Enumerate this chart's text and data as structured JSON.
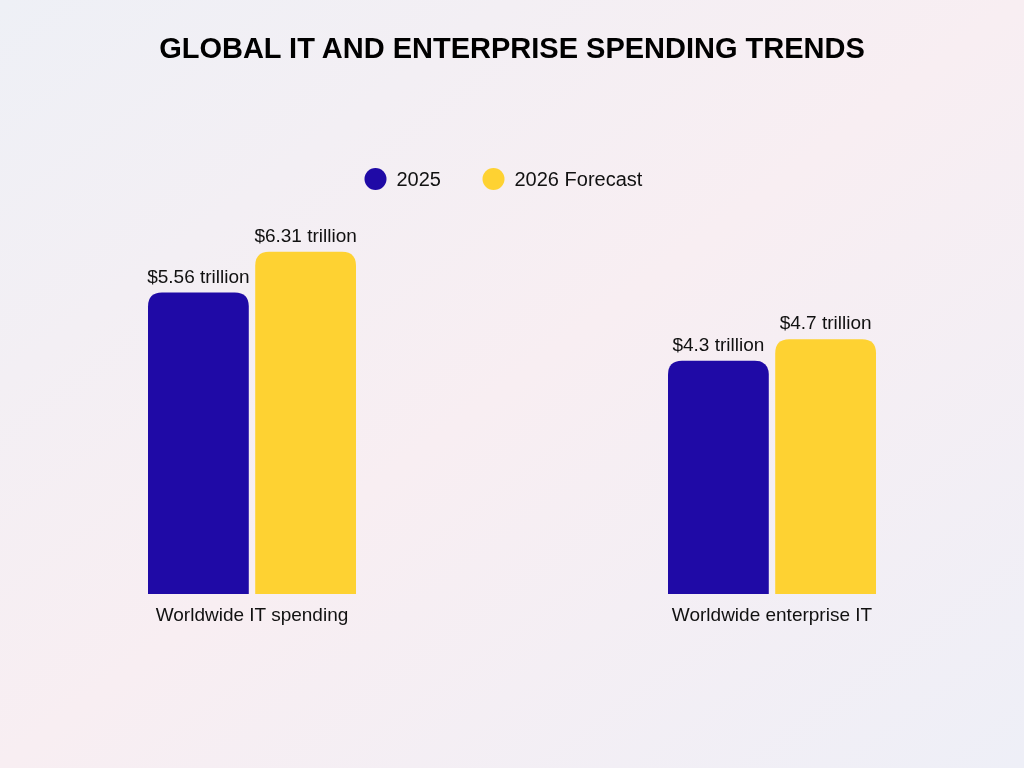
{
  "chart_data": {
    "type": "bar",
    "title": "GLOBAL IT AND ENTERPRISE SPENDING TRENDS",
    "categories": [
      "Worldwide IT spending",
      "Worldwide enterprise IT"
    ],
    "legend": "top",
    "series": [
      {
        "name": "2025",
        "color": "#1f0aa6",
        "values": [
          5.56,
          4.3
        ],
        "value_labels": [
          "$5.56 trillion",
          "$4.3 trillion"
        ]
      },
      {
        "name": "2026 Forecast",
        "color": "#fed232",
        "values": [
          6.31,
          4.7
        ],
        "value_labels": [
          "$6.31 trillion",
          "$4.7 trillion"
        ]
      }
    ]
  }
}
